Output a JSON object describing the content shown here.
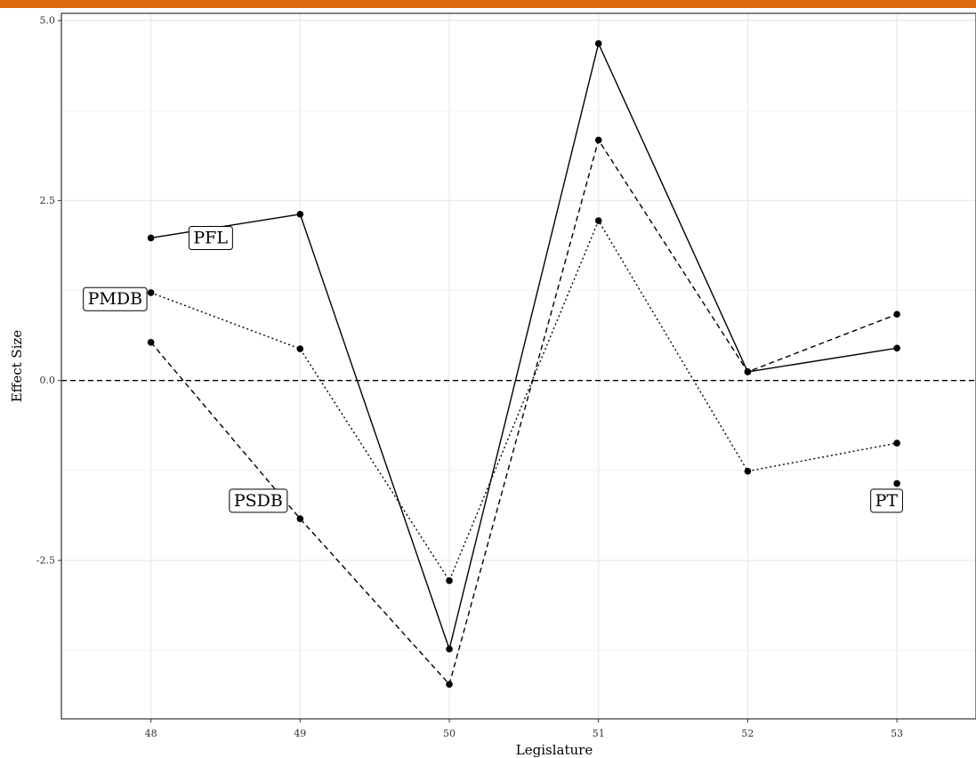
{
  "colors": {
    "top_bar": "#e06a10",
    "line": "#000000",
    "grid": "#ebebeb",
    "panel_border": "#333333"
  },
  "chart_data": {
    "type": "line",
    "xlabel": "Legislature",
    "ylabel": "Effect Size",
    "x": [
      48,
      49,
      50,
      51,
      52,
      53
    ],
    "xlim": [
      47.4,
      53.53
    ],
    "ylim": [
      -4.7,
      5.1
    ],
    "x_ticks": [
      "48",
      "49",
      "50",
      "51",
      "52",
      "53"
    ],
    "y_ticks": [
      {
        "value": 5.0,
        "label": "5.0"
      },
      {
        "value": 2.5,
        "label": "2.5"
      },
      {
        "value": 0.0,
        "label": "0.0"
      },
      {
        "value": -2.5,
        "label": "-2.5"
      }
    ],
    "minor_gridlines_y": [
      3.75,
      1.25,
      -1.25,
      -3.75
    ],
    "grid": true,
    "reference_line": {
      "y": 0,
      "style": "dashed"
    },
    "series": [
      {
        "name": "PFL",
        "style": "solid",
        "values": [
          1.98,
          2.31,
          -3.73,
          4.68,
          0.12,
          0.45
        ]
      },
      {
        "name": "PMDB",
        "style": "dotted",
        "values": [
          1.22,
          0.44,
          -2.78,
          2.22,
          -1.26,
          -0.87
        ]
      },
      {
        "name": "PSDB",
        "style": "dashed",
        "values": [
          0.53,
          -1.92,
          -4.22,
          3.34,
          0.12,
          0.92
        ]
      },
      {
        "name": "PT",
        "style": "points",
        "values": [
          null,
          null,
          null,
          null,
          null,
          -1.43
        ]
      }
    ],
    "labels": [
      {
        "text": "PFL",
        "x": 48.4,
        "y": 1.98
      },
      {
        "text": "PMDB",
        "x": 47.76,
        "y": 1.13
      },
      {
        "text": "PSDB",
        "x": 48.72,
        "y": -1.67
      },
      {
        "text": "PT",
        "x": 52.93,
        "y": -1.67
      }
    ]
  }
}
